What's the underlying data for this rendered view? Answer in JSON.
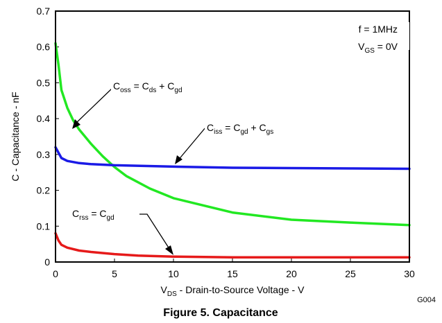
{
  "chart_data": {
    "type": "line",
    "title": "Figure 5. Capacitance",
    "figure_code": "G004",
    "xlabel": {
      "main": "V",
      "sub": "DS",
      "rest": " - Drain-to-Source Voltage - V"
    },
    "ylabel": "C - Capacitance - nF",
    "xlim": [
      0,
      30
    ],
    "ylim": [
      0,
      0.7
    ],
    "xticks": [
      0,
      5,
      10,
      15,
      20,
      25,
      30
    ],
    "yticks": [
      0,
      0.1,
      0.2,
      0.3,
      0.4,
      0.5,
      0.6,
      0.7
    ],
    "ytick_labels": [
      "0",
      "0.1",
      "0.2",
      "0.3",
      "0.4",
      "0.5",
      "0.6",
      "0.7"
    ],
    "xtick_labels": [
      "0",
      "5",
      "10",
      "15",
      "20",
      "25",
      "30"
    ],
    "grid": false,
    "conditions": [
      {
        "main": "f = 1MHz",
        "sub": "",
        "rest": ""
      },
      {
        "main": "V",
        "sub": "GS",
        "rest": " = 0V"
      }
    ],
    "series": [
      {
        "label_parts": [
          [
            "C",
            "oss"
          ],
          [
            " = C",
            "ds"
          ],
          [
            " + C",
            "gd"
          ]
        ],
        "color": "#22e822",
        "x": [
          0,
          0.25,
          0.5,
          1,
          1.5,
          2,
          3,
          4,
          5,
          6,
          8,
          10,
          12,
          15,
          20,
          25,
          30
        ],
        "y": [
          0.61,
          0.55,
          0.48,
          0.43,
          0.395,
          0.37,
          0.33,
          0.295,
          0.265,
          0.24,
          0.205,
          0.178,
          0.162,
          0.138,
          0.118,
          0.11,
          0.103
        ]
      },
      {
        "label_parts": [
          [
            "C",
            "iss"
          ],
          [
            " = C",
            "gd"
          ],
          [
            " + C",
            "gs"
          ]
        ],
        "color": "#1a1ae6",
        "x": [
          0,
          0.25,
          0.5,
          1,
          2,
          3,
          5,
          10,
          15,
          20,
          25,
          30
        ],
        "y": [
          0.32,
          0.305,
          0.29,
          0.282,
          0.276,
          0.273,
          0.27,
          0.266,
          0.263,
          0.262,
          0.261,
          0.26
        ]
      },
      {
        "label_parts": [
          [
            "C",
            "rss"
          ],
          [
            " = C",
            "gd"
          ]
        ],
        "color": "#e61a1a",
        "x": [
          0,
          0.25,
          0.5,
          1,
          2,
          3,
          5,
          7,
          10,
          15,
          20,
          25,
          30
        ],
        "y": [
          0.08,
          0.06,
          0.048,
          0.04,
          0.032,
          0.028,
          0.022,
          0.018,
          0.015,
          0.013,
          0.013,
          0.013,
          0.013
        ]
      }
    ]
  }
}
